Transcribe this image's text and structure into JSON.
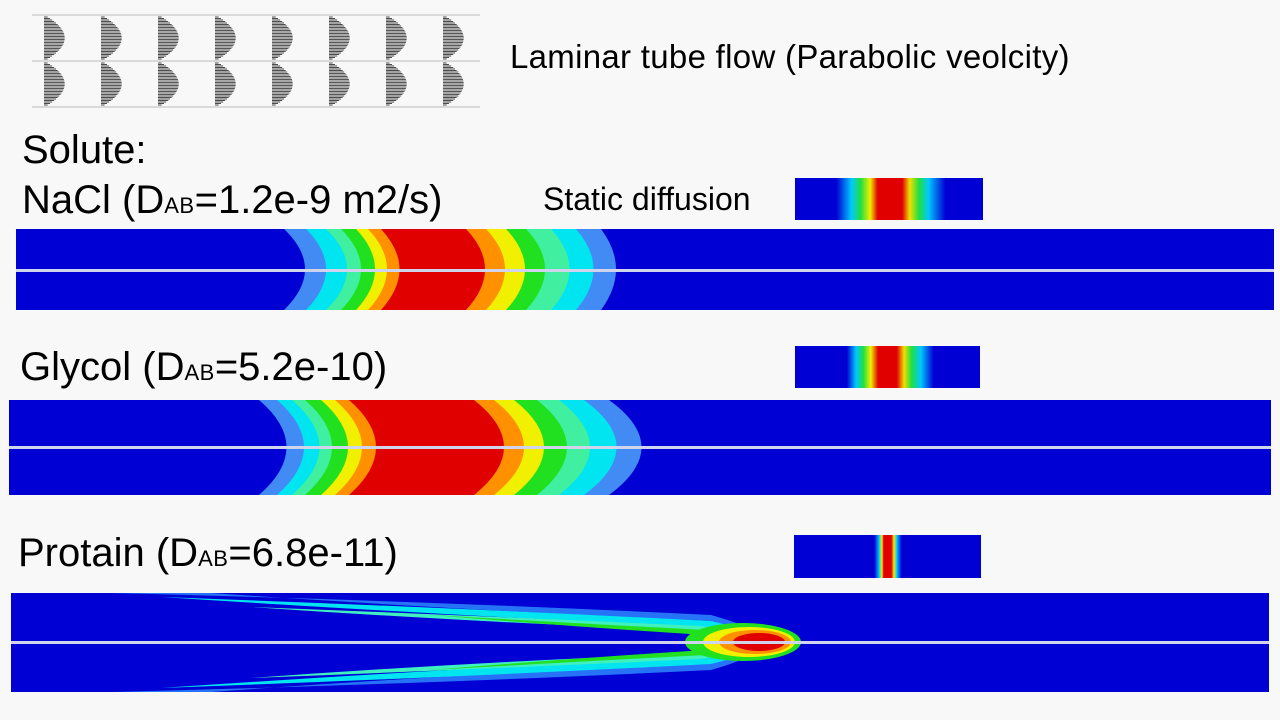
{
  "header": {
    "title": "Laminar tube flow (Parabolic veolcity)"
  },
  "solute_heading": "Solute:",
  "static_label": "Static diffusion",
  "solutes": [
    {
      "name": "NaCl (D",
      "sub": "AB",
      "value": "=1.2e-9 m2/s)"
    },
    {
      "name": "Glycol (D",
      "sub": "AB",
      "value": "=5.2e-10)"
    },
    {
      "name": "Protain (D",
      "sub": "AB",
      "value": "=6.8e-11)"
    }
  ],
  "colors": {
    "blue": "#0000d4",
    "cyan": "#00e5f0",
    "green": "#20e020",
    "yellow": "#f0f000",
    "red": "#e00000",
    "centerline": "#cfd3ec"
  },
  "icons": [
    "parabolic-velocity-profile-icon"
  ]
}
